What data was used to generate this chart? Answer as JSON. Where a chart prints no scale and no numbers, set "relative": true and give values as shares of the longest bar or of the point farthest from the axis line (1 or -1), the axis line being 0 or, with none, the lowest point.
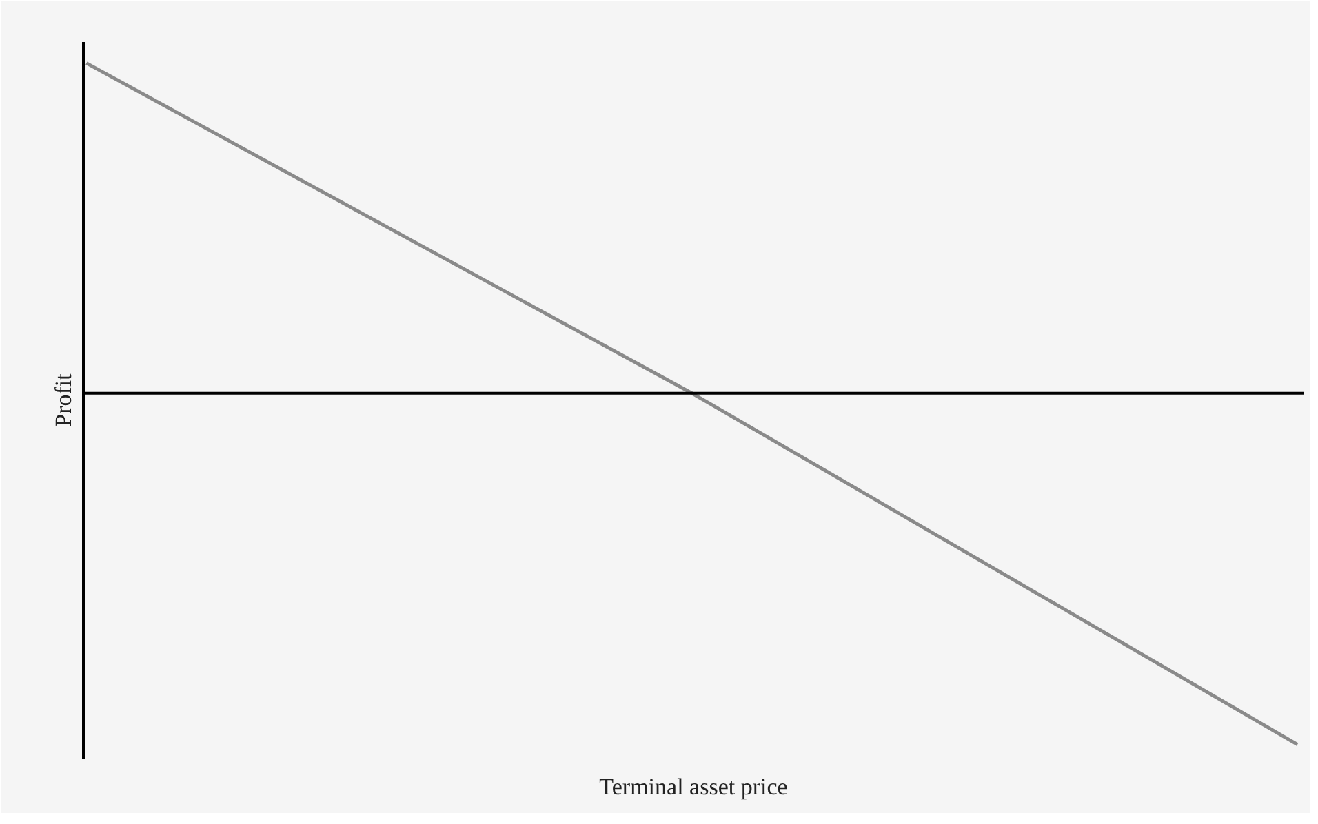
{
  "chart_data": {
    "type": "line",
    "relative": true,
    "xlabel": "Terminal asset price",
    "ylabel": "Profit",
    "categories": [
      null,
      null,
      null
    ],
    "series": [
      {
        "color": "#8a8a8a",
        "values": [
          0.94,
          0,
          -1
        ]
      }
    ],
    "grid": false,
    "marker": "none",
    "line_style": "solid"
  }
}
